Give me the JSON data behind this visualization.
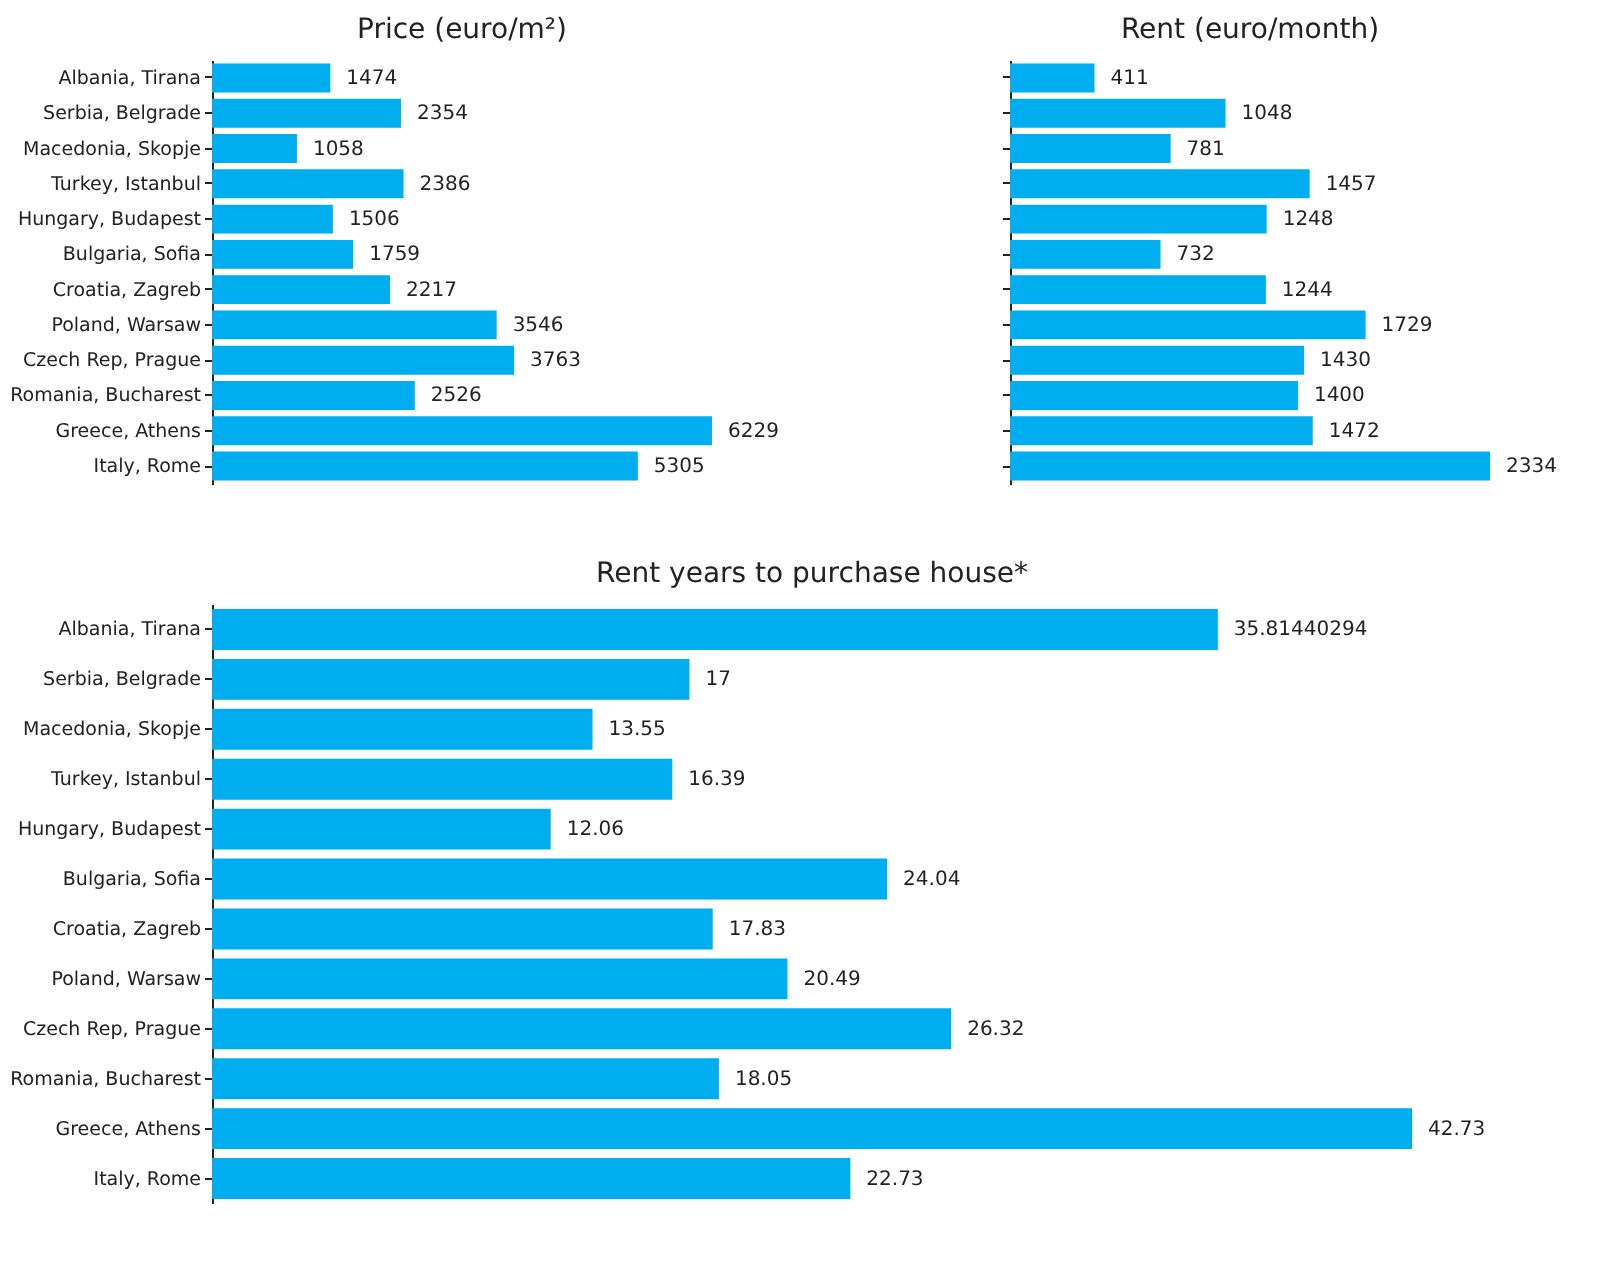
{
  "chart_data": [
    {
      "type": "bar",
      "orientation": "horizontal",
      "title": "Price (euro/m²)",
      "categories": [
        "Albania, Tirana",
        "Serbia, Belgrade",
        "Macedonia, Skopje",
        "Turkey, Istanbul",
        "Hungary, Budapest",
        "Bulgaria, Sofia",
        "Croatia, Zagreb",
        "Poland, Warsaw",
        "Czech Rep, Prague",
        "Romania, Bucharest",
        "Greece, Athens",
        "Italy, Rome"
      ],
      "values": [
        1474,
        2354,
        1058,
        2386,
        1506,
        1759,
        2217,
        3546,
        3763,
        2526,
        6229,
        5305
      ],
      "color": "#00aeef",
      "data_labels": true
    },
    {
      "type": "bar",
      "orientation": "horizontal",
      "title": "Rent (euro/month)",
      "categories": [
        null,
        null,
        null,
        null,
        null,
        null,
        null,
        null,
        null,
        null,
        null,
        null
      ],
      "values": [
        411,
        1048,
        781,
        1457,
        1248,
        732,
        1244,
        1729,
        1430,
        1400,
        1472,
        2334
      ],
      "color": "#00aeef",
      "data_labels": true,
      "tick_labels": false
    },
    {
      "type": "bar",
      "orientation": "horizontal",
      "title": "Rent years to purchase house*",
      "categories": [
        "Albania, Tirana",
        "Serbia, Belgrade",
        "Macedonia, Skopje",
        "Turkey, Istanbul",
        "Hungary, Budapest",
        "Bulgaria, Sofia",
        "Croatia, Zagreb",
        "Poland, Warsaw",
        "Czech Rep, Prague",
        "Romania, Bucharest",
        "Greece, Athens",
        "Italy, Rome"
      ],
      "values": [
        35.81440294,
        17,
        13.55,
        16.39,
        12.06,
        24.04,
        17.83,
        20.49,
        26.32,
        18.05,
        42.73,
        22.73
      ],
      "color": "#00aeef",
      "data_labels": true
    }
  ]
}
